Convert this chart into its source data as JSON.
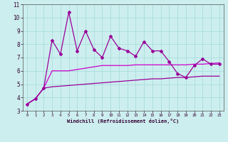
{
  "x": [
    0,
    1,
    2,
    3,
    4,
    5,
    6,
    7,
    8,
    9,
    10,
    11,
    12,
    13,
    14,
    15,
    16,
    17,
    18,
    19,
    20,
    21,
    22,
    23
  ],
  "main_line": [
    3.5,
    3.9,
    4.7,
    8.3,
    7.25,
    10.4,
    7.5,
    9.0,
    7.6,
    7.0,
    8.6,
    7.7,
    7.5,
    7.1,
    8.2,
    7.5,
    7.5,
    6.7,
    5.8,
    5.5,
    6.4,
    6.9,
    6.5,
    6.5
  ],
  "upper_smooth": [
    3.5,
    3.9,
    4.7,
    6.0,
    6.0,
    6.0,
    6.1,
    6.2,
    6.3,
    6.4,
    6.4,
    6.4,
    6.4,
    6.45,
    6.45,
    6.45,
    6.45,
    6.45,
    6.45,
    6.45,
    6.5,
    6.5,
    6.55,
    6.6
  ],
  "lower_smooth": [
    3.5,
    3.9,
    4.7,
    4.8,
    4.85,
    4.9,
    4.95,
    5.0,
    5.05,
    5.1,
    5.15,
    5.2,
    5.25,
    5.3,
    5.35,
    5.4,
    5.4,
    5.45,
    5.5,
    5.5,
    5.55,
    5.6,
    5.6,
    5.6
  ],
  "line_color": "#990099",
  "smooth_color1": "#cc00cc",
  "smooth_color2": "#990099",
  "bg_color": "#cceeee",
  "grid_color": "#aadddd",
  "xlabel": "Windchill (Refroidissement éolien,°C)",
  "ylim": [
    3,
    11
  ],
  "xlim": [
    -0.5,
    23.5
  ],
  "yticks": [
    3,
    4,
    5,
    6,
    7,
    8,
    9,
    10,
    11
  ],
  "xticks": [
    0,
    1,
    2,
    3,
    4,
    5,
    6,
    7,
    8,
    9,
    10,
    11,
    12,
    13,
    14,
    15,
    16,
    17,
    18,
    19,
    20,
    21,
    22,
    23
  ]
}
